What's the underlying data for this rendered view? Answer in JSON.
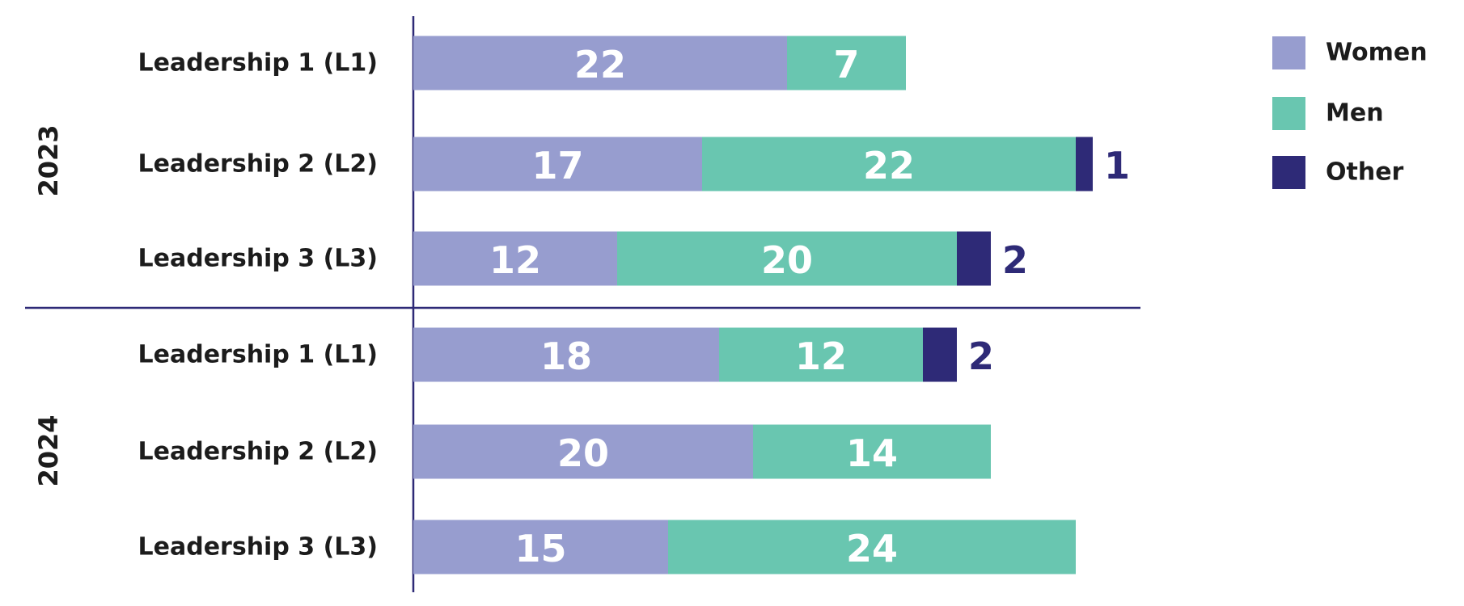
{
  "chart_data": {
    "type": "stacked-barh",
    "groups": [
      {
        "label": "2023",
        "categories": [
          "Leadership 1 (L1)",
          "Leadership 2 (L2)",
          "Leadership 3 (L3)"
        ]
      },
      {
        "label": "2024",
        "categories": [
          "Leadership 1 (L1)",
          "Leadership 2 (L2)",
          "Leadership 3 (L3)"
        ]
      }
    ],
    "series": [
      {
        "name": "Women",
        "color": "#979dcf",
        "values": [
          22,
          17,
          12,
          18,
          20,
          15
        ]
      },
      {
        "name": "Men",
        "color": "#69c6b0",
        "values": [
          7,
          22,
          20,
          12,
          14,
          24
        ]
      },
      {
        "name": "Other",
        "color": "#2e2a77",
        "values": [
          null,
          1,
          2,
          2,
          null,
          null
        ]
      }
    ],
    "legend": "upper right"
  }
}
